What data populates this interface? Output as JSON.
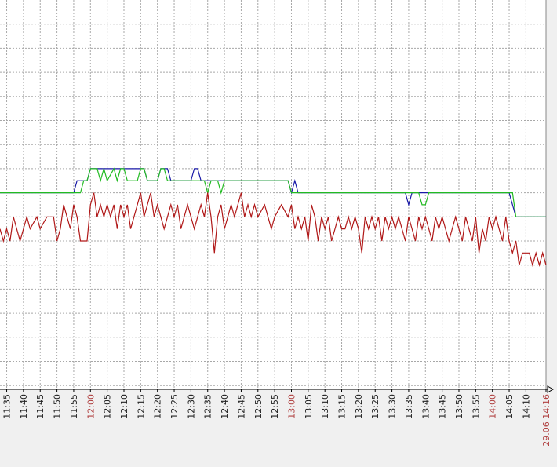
{
  "chart_data": {
    "type": "line",
    "title": "",
    "xlabel": "",
    "ylabel": "",
    "x_axis": {
      "start": "11:33",
      "end": "14:16",
      "tick_labels": [
        {
          "label": "11:35",
          "t": "11:35",
          "major": false
        },
        {
          "label": "11:40",
          "t": "11:40",
          "major": false
        },
        {
          "label": "11:45",
          "t": "11:45",
          "major": false
        },
        {
          "label": "11:50",
          "t": "11:50",
          "major": false
        },
        {
          "label": "11:55",
          "t": "11:55",
          "major": false
        },
        {
          "label": "12:00",
          "t": "12:00",
          "major": true
        },
        {
          "label": "12:05",
          "t": "12:05",
          "major": false
        },
        {
          "label": "12:10",
          "t": "12:10",
          "major": false
        },
        {
          "label": "12:15",
          "t": "12:15",
          "major": false
        },
        {
          "label": "12:20",
          "t": "12:20",
          "major": false
        },
        {
          "label": "12:25",
          "t": "12:25",
          "major": false
        },
        {
          "label": "12:30",
          "t": "12:30",
          "major": false
        },
        {
          "label": "12:35",
          "t": "12:35",
          "major": false
        },
        {
          "label": "12:40",
          "t": "12:40",
          "major": false
        },
        {
          "label": "12:45",
          "t": "12:45",
          "major": false
        },
        {
          "label": "12:50",
          "t": "12:50",
          "major": false
        },
        {
          "label": "12:55",
          "t": "12:55",
          "major": false
        },
        {
          "label": "13:00",
          "t": "13:00",
          "major": true
        },
        {
          "label": "13:05",
          "t": "13:05",
          "major": false
        },
        {
          "label": "13:10",
          "t": "13:10",
          "major": false
        },
        {
          "label": "13:15",
          "t": "13:15",
          "major": false
        },
        {
          "label": "13:20",
          "t": "13:20",
          "major": false
        },
        {
          "label": "13:25",
          "t": "13:25",
          "major": false
        },
        {
          "label": "13:30",
          "t": "13:30",
          "major": false
        },
        {
          "label": "13:35",
          "t": "13:35",
          "major": false
        },
        {
          "label": "13:40",
          "t": "13:40",
          "major": false
        },
        {
          "label": "13:45",
          "t": "13:45",
          "major": false
        },
        {
          "label": "13:50",
          "t": "13:50",
          "major": false
        },
        {
          "label": "13:55",
          "t": "13:55",
          "major": false
        },
        {
          "label": "14:00",
          "t": "14:00",
          "major": true
        },
        {
          "label": "14:05",
          "t": "14:05",
          "major": false
        },
        {
          "label": "14:10",
          "t": "14:10",
          "major": false
        },
        {
          "label": "29.06 14:16",
          "t": "14:16",
          "major": true
        }
      ]
    },
    "y_axis": {
      "range": [
        0,
        16
      ],
      "tick_labels": [],
      "grid_step": 1
    },
    "grid": true,
    "legend": "none",
    "colors": {
      "background": "#f0f0f0",
      "plot_background": "#ffffff",
      "grid": "#a8a8a8",
      "axis": "#000000",
      "tick_text": "#222222",
      "tick_text_major": "#b04040"
    },
    "series": [
      {
        "color": "#1a1aa8",
        "points": [
          [
            "11:33",
            9
          ],
          [
            "11:55",
            9
          ],
          [
            "11:56",
            9.5
          ],
          [
            "11:59",
            9.5
          ],
          [
            "12:00",
            10
          ],
          [
            "12:16",
            10
          ],
          [
            "12:17",
            9.5
          ],
          [
            "12:20",
            9.5
          ],
          [
            "12:21",
            10
          ],
          [
            "12:23",
            10
          ],
          [
            "12:24",
            9.5
          ],
          [
            "12:30",
            9.5
          ],
          [
            "12:31",
            10
          ],
          [
            "12:32",
            10
          ],
          [
            "12:33",
            9.5
          ],
          [
            "12:59",
            9.5
          ],
          [
            "13:00",
            9
          ],
          [
            "13:01",
            9.5
          ],
          [
            "13:02",
            9
          ],
          [
            "13:34",
            9
          ],
          [
            "13:35",
            8.5
          ],
          [
            "13:36",
            9
          ],
          [
            "14:05",
            9
          ],
          [
            "14:06",
            8.5
          ],
          [
            "14:07",
            8
          ],
          [
            "14:16",
            8
          ]
        ]
      },
      {
        "color": "#22bb22",
        "points": [
          [
            "11:33",
            9
          ],
          [
            "11:57",
            9
          ],
          [
            "11:58",
            9.5
          ],
          [
            "11:59",
            9.5
          ],
          [
            "12:00",
            10
          ],
          [
            "12:02",
            10
          ],
          [
            "12:03",
            9.5
          ],
          [
            "12:04",
            10
          ],
          [
            "12:05",
            9.5
          ],
          [
            "12:07",
            10
          ],
          [
            "12:08",
            9.5
          ],
          [
            "12:09",
            10
          ],
          [
            "12:10",
            10
          ],
          [
            "12:11",
            9.5
          ],
          [
            "12:14",
            9.5
          ],
          [
            "12:15",
            10
          ],
          [
            "12:16",
            10
          ],
          [
            "12:17",
            9.5
          ],
          [
            "12:20",
            9.5
          ],
          [
            "12:21",
            10
          ],
          [
            "12:22",
            10
          ],
          [
            "12:23",
            9.5
          ],
          [
            "12:34",
            9.5
          ],
          [
            "12:35",
            9
          ],
          [
            "12:36",
            9.5
          ],
          [
            "12:38",
            9.5
          ],
          [
            "12:39",
            9
          ],
          [
            "12:40",
            9.5
          ],
          [
            "12:59",
            9.5
          ],
          [
            "13:00",
            9
          ],
          [
            "13:38",
            9
          ],
          [
            "13:39",
            8.5
          ],
          [
            "13:40",
            8.5
          ],
          [
            "13:41",
            9
          ],
          [
            "14:06",
            9
          ],
          [
            "14:07",
            8
          ],
          [
            "14:16",
            8
          ]
        ]
      },
      {
        "color": "#b01818",
        "points": [
          [
            "11:33",
            7.5
          ],
          [
            "11:34",
            7
          ],
          [
            "11:35",
            7.5
          ],
          [
            "11:36",
            7
          ],
          [
            "11:37",
            8
          ],
          [
            "11:38",
            7.5
          ],
          [
            "11:39",
            7
          ],
          [
            "11:40",
            7.5
          ],
          [
            "11:41",
            8
          ],
          [
            "11:42",
            7.5
          ],
          [
            "11:44",
            8
          ],
          [
            "11:45",
            7.5
          ],
          [
            "11:47",
            8
          ],
          [
            "11:49",
            8
          ],
          [
            "11:50",
            7
          ],
          [
            "11:51",
            7.5
          ],
          [
            "11:52",
            8.5
          ],
          [
            "11:53",
            8
          ],
          [
            "11:54",
            7.5
          ],
          [
            "11:55",
            8.5
          ],
          [
            "11:56",
            8
          ],
          [
            "11:57",
            7
          ],
          [
            "11:59",
            7
          ],
          [
            "12:00",
            8.5
          ],
          [
            "12:01",
            9
          ],
          [
            "12:02",
            8
          ],
          [
            "12:03",
            8.5
          ],
          [
            "12:04",
            8
          ],
          [
            "12:05",
            8.5
          ],
          [
            "12:06",
            8
          ],
          [
            "12:07",
            8.5
          ],
          [
            "12:08",
            7.5
          ],
          [
            "12:09",
            8.5
          ],
          [
            "12:10",
            8
          ],
          [
            "12:11",
            8.5
          ],
          [
            "12:12",
            7.5
          ],
          [
            "12:13",
            8
          ],
          [
            "12:14",
            8.5
          ],
          [
            "12:15",
            9
          ],
          [
            "12:16",
            8
          ],
          [
            "12:17",
            8.5
          ],
          [
            "12:18",
            9
          ],
          [
            "12:19",
            8
          ],
          [
            "12:20",
            8.5
          ],
          [
            "12:21",
            8
          ],
          [
            "12:22",
            7.5
          ],
          [
            "12:23",
            8
          ],
          [
            "12:24",
            8.5
          ],
          [
            "12:25",
            8
          ],
          [
            "12:26",
            8.5
          ],
          [
            "12:27",
            7.5
          ],
          [
            "12:28",
            8
          ],
          [
            "12:29",
            8.5
          ],
          [
            "12:30",
            8
          ],
          [
            "12:31",
            7.5
          ],
          [
            "12:32",
            8
          ],
          [
            "12:33",
            8.5
          ],
          [
            "12:34",
            8
          ],
          [
            "12:35",
            9
          ],
          [
            "12:36",
            8
          ],
          [
            "12:37",
            6.5
          ],
          [
            "12:38",
            8
          ],
          [
            "12:39",
            8.5
          ],
          [
            "12:40",
            7.5
          ],
          [
            "12:41",
            8
          ],
          [
            "12:42",
            8.5
          ],
          [
            "12:43",
            8
          ],
          [
            "12:44",
            8.5
          ],
          [
            "12:45",
            9
          ],
          [
            "12:46",
            8
          ],
          [
            "12:47",
            8.5
          ],
          [
            "12:48",
            8
          ],
          [
            "12:49",
            8.5
          ],
          [
            "12:50",
            8
          ],
          [
            "12:52",
            8.5
          ],
          [
            "12:53",
            8
          ],
          [
            "12:54",
            7.5
          ],
          [
            "12:55",
            8
          ],
          [
            "12:57",
            8.5
          ],
          [
            "12:59",
            8
          ],
          [
            "13:00",
            8.5
          ],
          [
            "13:01",
            7.5
          ],
          [
            "13:02",
            8
          ],
          [
            "13:03",
            7.5
          ],
          [
            "13:04",
            8
          ],
          [
            "13:05",
            7
          ],
          [
            "13:06",
            8.5
          ],
          [
            "13:07",
            8
          ],
          [
            "13:08",
            7
          ],
          [
            "13:09",
            8
          ],
          [
            "13:10",
            7.5
          ],
          [
            "13:11",
            8
          ],
          [
            "13:12",
            7
          ],
          [
            "13:13",
            7.5
          ],
          [
            "13:14",
            8
          ],
          [
            "13:15",
            7.5
          ],
          [
            "13:16",
            7.5
          ],
          [
            "13:17",
            8
          ],
          [
            "13:18",
            7.5
          ],
          [
            "13:19",
            8
          ],
          [
            "13:20",
            7.5
          ],
          [
            "13:21",
            6.5
          ],
          [
            "13:22",
            8
          ],
          [
            "13:23",
            7.5
          ],
          [
            "13:24",
            8
          ],
          [
            "13:25",
            7.5
          ],
          [
            "13:26",
            8
          ],
          [
            "13:27",
            7
          ],
          [
            "13:28",
            8
          ],
          [
            "13:29",
            7.5
          ],
          [
            "13:30",
            8
          ],
          [
            "13:31",
            7.5
          ],
          [
            "13:32",
            8
          ],
          [
            "13:33",
            7.5
          ],
          [
            "13:34",
            7
          ],
          [
            "13:35",
            8
          ],
          [
            "13:36",
            7.5
          ],
          [
            "13:37",
            7
          ],
          [
            "13:38",
            8
          ],
          [
            "13:39",
            7.5
          ],
          [
            "13:40",
            8
          ],
          [
            "13:41",
            7.5
          ],
          [
            "13:42",
            7
          ],
          [
            "13:43",
            8
          ],
          [
            "13:44",
            7.5
          ],
          [
            "13:45",
            8
          ],
          [
            "13:46",
            7.5
          ],
          [
            "13:47",
            7
          ],
          [
            "13:48",
            7.5
          ],
          [
            "13:49",
            8
          ],
          [
            "13:50",
            7.5
          ],
          [
            "13:51",
            7
          ],
          [
            "13:52",
            8
          ],
          [
            "13:53",
            7.5
          ],
          [
            "13:54",
            7
          ],
          [
            "13:55",
            8
          ],
          [
            "13:56",
            6.5
          ],
          [
            "13:57",
            7.5
          ],
          [
            "13:58",
            7
          ],
          [
            "13:59",
            8
          ],
          [
            "14:00",
            7.5
          ],
          [
            "14:01",
            8
          ],
          [
            "14:02",
            7.5
          ],
          [
            "14:03",
            7
          ],
          [
            "14:04",
            8
          ],
          [
            "14:05",
            7
          ],
          [
            "14:06",
            6.5
          ],
          [
            "14:07",
            7
          ],
          [
            "14:08",
            6
          ],
          [
            "14:09",
            6.5
          ],
          [
            "14:11",
            6.5
          ],
          [
            "14:12",
            6
          ],
          [
            "14:13",
            6.5
          ],
          [
            "14:14",
            6
          ],
          [
            "14:15",
            6.5
          ],
          [
            "14:16",
            6
          ]
        ]
      }
    ]
  }
}
